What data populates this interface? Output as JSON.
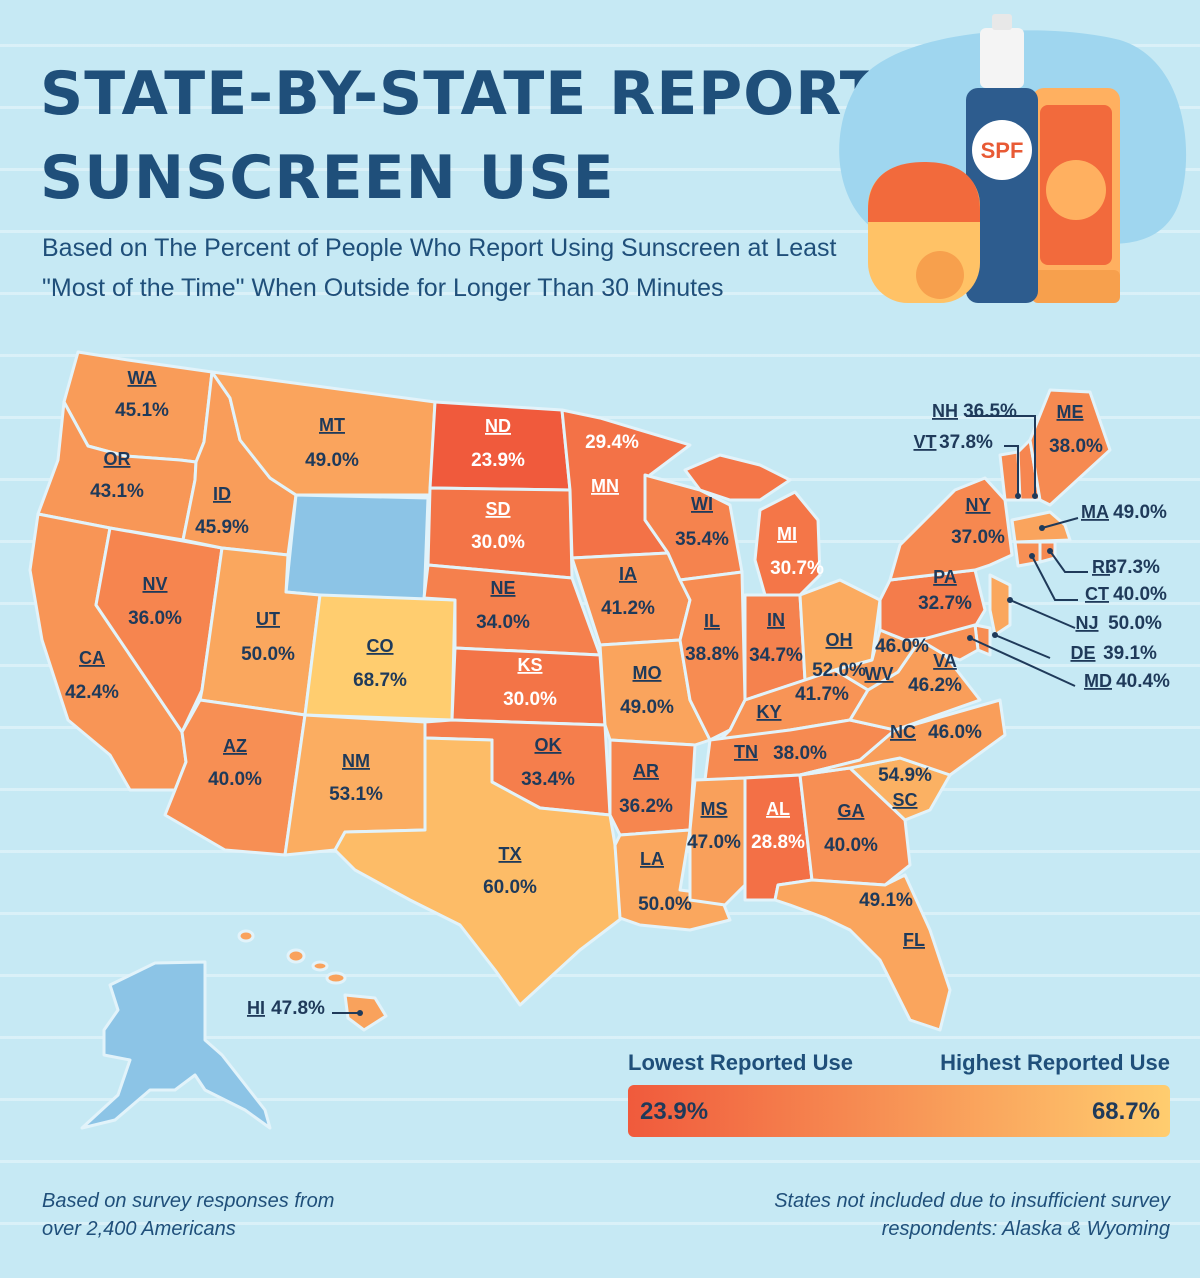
{
  "title_line1": "STATE-BY-STATE REPORTED",
  "title_line2": "SUNSCREEN USE",
  "subtitle": "Based on The Percent of People Who Report Using Sunscreen at Least \"Most of the Time\" When Outside for Longer Than 30 Minutes",
  "illustration_label": "SPF",
  "colors": {
    "low": "#f05a3c",
    "high": "#ffcd6f",
    "no_data": "#8cc4e6",
    "title": "#1f4f7a",
    "border": "#e2f3fa"
  },
  "map_data": {
    "type": "choropleth",
    "region": "United States",
    "states": [
      {
        "abbr": "WA",
        "value": 45.1,
        "label": "45.1%"
      },
      {
        "abbr": "OR",
        "value": 43.1,
        "label": "43.1%"
      },
      {
        "abbr": "CA",
        "value": 42.4,
        "label": "42.4%"
      },
      {
        "abbr": "NV",
        "value": 36.0,
        "label": "36.0%"
      },
      {
        "abbr": "ID",
        "value": 45.9,
        "label": "45.9%"
      },
      {
        "abbr": "MT",
        "value": 49.0,
        "label": "49.0%"
      },
      {
        "abbr": "UT",
        "value": 50.0,
        "label": "50.0%"
      },
      {
        "abbr": "AZ",
        "value": 40.0,
        "label": "40.0%"
      },
      {
        "abbr": "CO",
        "value": 68.7,
        "label": "68.7%"
      },
      {
        "abbr": "NM",
        "value": 53.1,
        "label": "53.1%"
      },
      {
        "abbr": "ND",
        "value": 23.9,
        "label": "23.9%"
      },
      {
        "abbr": "SD",
        "value": 30.0,
        "label": "30.0%"
      },
      {
        "abbr": "NE",
        "value": 34.0,
        "label": "34.0%"
      },
      {
        "abbr": "KS",
        "value": 30.0,
        "label": "30.0%"
      },
      {
        "abbr": "OK",
        "value": 33.4,
        "label": "33.4%"
      },
      {
        "abbr": "TX",
        "value": 60.0,
        "label": "60.0%"
      },
      {
        "abbr": "MN",
        "value": 29.4,
        "label": "29.4%"
      },
      {
        "abbr": "IA",
        "value": 41.2,
        "label": "41.2%"
      },
      {
        "abbr": "MO",
        "value": 49.0,
        "label": "49.0%"
      },
      {
        "abbr": "AR",
        "value": 36.2,
        "label": "36.2%"
      },
      {
        "abbr": "LA",
        "value": 50.0,
        "label": "50.0%"
      },
      {
        "abbr": "WI",
        "value": 35.4,
        "label": "35.4%"
      },
      {
        "abbr": "IL",
        "value": 38.8,
        "label": "38.8%"
      },
      {
        "abbr": "MI",
        "value": 30.7,
        "label": "30.7%"
      },
      {
        "abbr": "IN",
        "value": 34.7,
        "label": "34.7%"
      },
      {
        "abbr": "OH",
        "value": 52.0,
        "label": "52.0%"
      },
      {
        "abbr": "KY",
        "value": 41.7,
        "label": "41.7%"
      },
      {
        "abbr": "TN",
        "value": 38.0,
        "label": "38.0%"
      },
      {
        "abbr": "MS",
        "value": 47.0,
        "label": "47.0%"
      },
      {
        "abbr": "AL",
        "value": 28.8,
        "label": "28.8%"
      },
      {
        "abbr": "GA",
        "value": 40.0,
        "label": "40.0%"
      },
      {
        "abbr": "FL",
        "value": 49.1,
        "label": "49.1%"
      },
      {
        "abbr": "SC",
        "value": 54.9,
        "label": "54.9%"
      },
      {
        "abbr": "NC",
        "value": 46.0,
        "label": "46.0%"
      },
      {
        "abbr": "VA",
        "value": 46.2,
        "label": "46.2%"
      },
      {
        "abbr": "WV",
        "value": 46.0,
        "label": "46.0%"
      },
      {
        "abbr": "PA",
        "value": 32.7,
        "label": "32.7%"
      },
      {
        "abbr": "NY",
        "value": 37.0,
        "label": "37.0%"
      },
      {
        "abbr": "ME",
        "value": 38.0,
        "label": "38.0%"
      },
      {
        "abbr": "NH",
        "value": 36.5,
        "label": "36.5%"
      },
      {
        "abbr": "VT",
        "value": 37.8,
        "label": "37.8%"
      },
      {
        "abbr": "MA",
        "value": 49.0,
        "label": "49.0%"
      },
      {
        "abbr": "RI",
        "value": 37.3,
        "label": "37.3%"
      },
      {
        "abbr": "CT",
        "value": 40.0,
        "label": "40.0%"
      },
      {
        "abbr": "NJ",
        "value": 50.0,
        "label": "50.0%"
      },
      {
        "abbr": "DE",
        "value": 39.1,
        "label": "39.1%"
      },
      {
        "abbr": "MD",
        "value": 40.4,
        "label": "40.4%"
      },
      {
        "abbr": "HI",
        "value": 47.8,
        "label": "47.8%"
      }
    ],
    "no_data_states": [
      "WY",
      "AK"
    ]
  },
  "legend": {
    "low_label": "Lowest Reported Use",
    "high_label": "Highest Reported Use",
    "min_value": "23.9%",
    "max_value": "68.7%",
    "min": 23.9,
    "max": 68.7
  },
  "footnote_left": "Based on survey responses from over 2,400 Americans",
  "footnote_right": "States not included due to insufficient survey respondents: Alaska & Wyoming"
}
